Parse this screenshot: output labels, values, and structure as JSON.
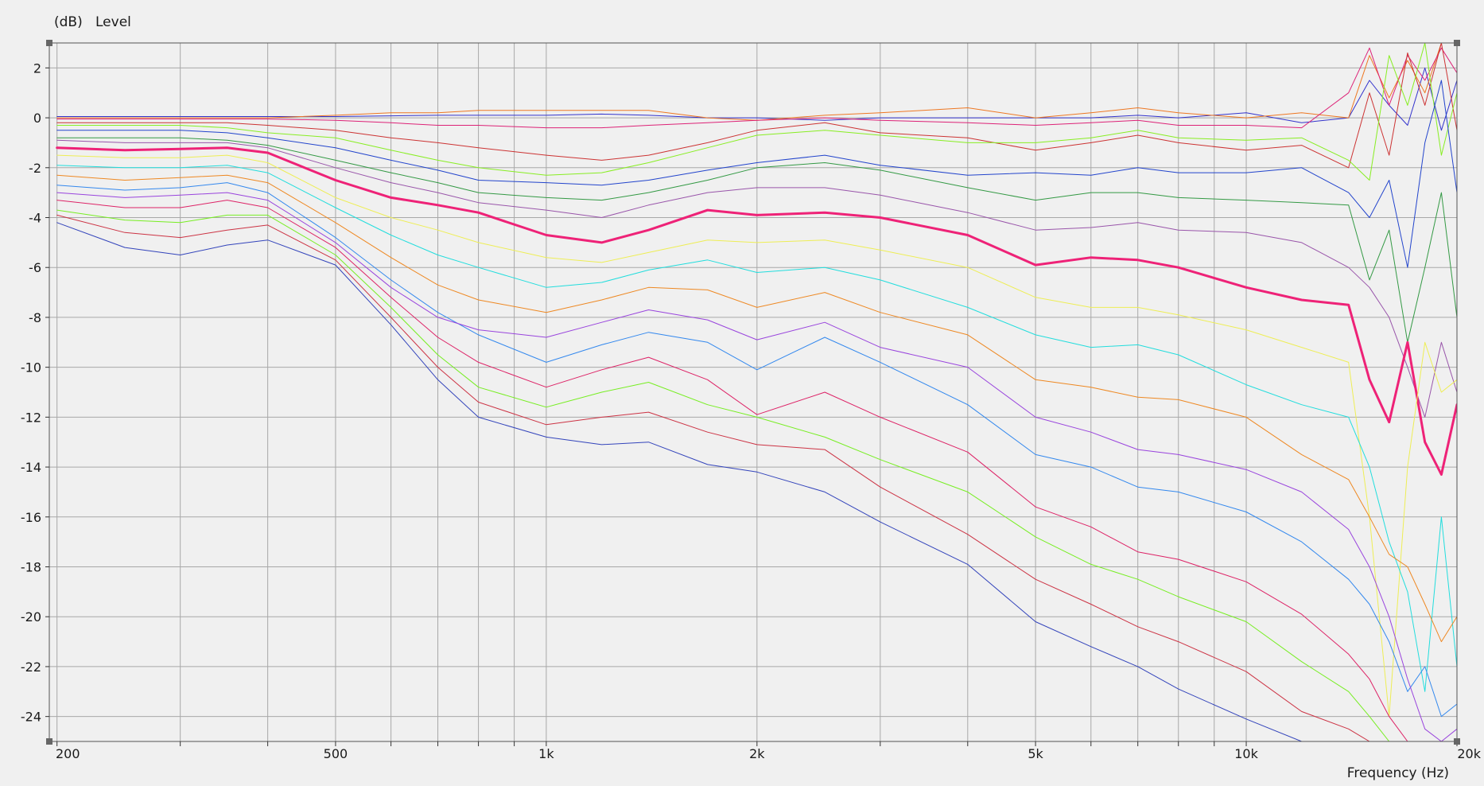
{
  "chart_data": {
    "type": "line",
    "ylabel_unit": "(dB)",
    "ylabel": "Level",
    "xlabel": "Frequency  (Hz)",
    "x_scale": "log",
    "xlim": [
      195,
      20000
    ],
    "ylim": [
      -25,
      3
    ],
    "grid": true,
    "x_ticks_labeled": [
      {
        "value": 200,
        "label": "200"
      },
      {
        "value": 500,
        "label": "500"
      },
      {
        "value": 1000,
        "label": "1k"
      },
      {
        "value": 2000,
        "label": "2k"
      },
      {
        "value": 5000,
        "label": "5k"
      },
      {
        "value": 10000,
        "label": "10k"
      },
      {
        "value": 20000,
        "label": "20k"
      }
    ],
    "x_gridlines": [
      200,
      300,
      400,
      500,
      600,
      700,
      800,
      900,
      1000,
      2000,
      3000,
      4000,
      5000,
      6000,
      7000,
      8000,
      9000,
      10000,
      20000
    ],
    "y_ticks": [
      2,
      0,
      -2,
      -4,
      -6,
      -8,
      -10,
      -12,
      -14,
      -16,
      -18,
      -20,
      -22,
      -24
    ],
    "x": [
      200,
      250,
      300,
      350,
      400,
      500,
      600,
      700,
      800,
      1000,
      1200,
      1400,
      1700,
      2000,
      2500,
      3000,
      4000,
      5000,
      6000,
      7000,
      8000,
      10000,
      12000,
      14000,
      15000,
      16000,
      17000,
      18000,
      19000,
      20000
    ],
    "series": [
      {
        "color": "#3333cc",
        "width": 1,
        "values": [
          0.05,
          0.05,
          0.05,
          0.05,
          0.05,
          0.05,
          0.08,
          0.1,
          0.1,
          0.1,
          0.15,
          0.1,
          0.0,
          0.0,
          -0.1,
          0.0,
          0.0,
          0.0,
          0.0,
          0.1,
          0.0,
          0.2,
          -0.2,
          0.0,
          1.5,
          0.5,
          -0.3,
          2.0,
          -0.5,
          1.5
        ]
      },
      {
        "color": "#ee7722",
        "width": 1,
        "values": [
          0.0,
          0.0,
          0.0,
          0.0,
          0.0,
          0.1,
          0.2,
          0.2,
          0.3,
          0.3,
          0.3,
          0.3,
          0.0,
          -0.1,
          0.1,
          0.2,
          0.4,
          0.0,
          0.2,
          0.4,
          0.2,
          0.0,
          0.2,
          0.0,
          2.5,
          0.8,
          2.3,
          1.0,
          3.0,
          3.0
        ]
      },
      {
        "color": "#dd2277",
        "width": 1,
        "values": [
          -0.05,
          -0.05,
          -0.05,
          -0.05,
          -0.05,
          -0.1,
          -0.2,
          -0.3,
          -0.3,
          -0.4,
          -0.4,
          -0.3,
          -0.2,
          -0.1,
          0.0,
          -0.1,
          -0.2,
          -0.3,
          -0.2,
          -0.1,
          -0.3,
          -0.3,
          -0.4,
          1.0,
          2.8,
          0.5,
          2.5,
          1.5,
          2.8,
          1.8
        ]
      },
      {
        "color": "#cc3333",
        "width": 1,
        "values": [
          -0.2,
          -0.2,
          -0.2,
          -0.2,
          -0.3,
          -0.5,
          -0.8,
          -1.0,
          -1.2,
          -1.5,
          -1.7,
          -1.5,
          -1.0,
          -0.5,
          -0.2,
          -0.6,
          -0.8,
          -1.3,
          -1.0,
          -0.7,
          -1.0,
          -1.3,
          -1.1,
          -2.0,
          1.0,
          -1.5,
          2.6,
          0.5,
          3.0,
          -0.5
        ]
      },
      {
        "color": "#88ee22",
        "width": 1,
        "values": [
          -0.3,
          -0.3,
          -0.3,
          -0.4,
          -0.6,
          -0.8,
          -1.3,
          -1.7,
          -2.0,
          -2.3,
          -2.2,
          -1.8,
          -1.2,
          -0.7,
          -0.5,
          -0.7,
          -1.0,
          -1.0,
          -0.8,
          -0.5,
          -0.8,
          -0.9,
          -0.8,
          -1.7,
          -2.5,
          2.5,
          0.5,
          3.0,
          -1.5,
          1.0
        ]
      },
      {
        "color": "#2244cc",
        "width": 1,
        "values": [
          -0.5,
          -0.5,
          -0.5,
          -0.6,
          -0.8,
          -1.2,
          -1.7,
          -2.1,
          -2.5,
          -2.6,
          -2.7,
          -2.5,
          -2.1,
          -1.8,
          -1.5,
          -1.9,
          -2.3,
          -2.2,
          -2.3,
          -2.0,
          -2.2,
          -2.2,
          -2.0,
          -3.0,
          -4.0,
          -2.5,
          -6.0,
          -1.0,
          1.5,
          -3.0
        ]
      },
      {
        "color": "#339944",
        "width": 1,
        "values": [
          -0.8,
          -0.8,
          -0.8,
          -0.9,
          -1.1,
          -1.7,
          -2.2,
          -2.6,
          -3.0,
          -3.2,
          -3.3,
          -3.0,
          -2.5,
          -2.0,
          -1.8,
          -2.1,
          -2.8,
          -3.3,
          -3.0,
          -3.0,
          -3.2,
          -3.3,
          -3.4,
          -3.5,
          -6.5,
          -4.5,
          -9.0,
          -6.0,
          -3.0,
          -8.0
        ]
      },
      {
        "color": "#9955aa",
        "width": 1,
        "values": [
          -0.9,
          -1.0,
          -1.0,
          -1.0,
          -1.2,
          -2.0,
          -2.6,
          -3.0,
          -3.4,
          -3.7,
          -4.0,
          -3.5,
          -3.0,
          -2.8,
          -2.8,
          -3.1,
          -3.8,
          -4.5,
          -4.4,
          -4.2,
          -4.5,
          -4.6,
          -5.0,
          -6.0,
          -6.8,
          -8.0,
          -10.0,
          -12.0,
          -9.0,
          -11.0
        ]
      },
      {
        "color": "#ee2277",
        "width": 3,
        "values": [
          -1.2,
          -1.3,
          -1.25,
          -1.2,
          -1.4,
          -2.5,
          -3.2,
          -3.5,
          -3.8,
          -4.7,
          -5.0,
          -4.5,
          -3.7,
          -3.9,
          -3.8,
          -4.0,
          -4.7,
          -5.9,
          -5.6,
          -5.7,
          -6.0,
          -6.8,
          -7.3,
          -7.5,
          -10.5,
          -12.2,
          -9.0,
          -13.0,
          -14.3,
          -11.5
        ]
      },
      {
        "color": "#eeee55",
        "width": 1,
        "values": [
          -1.5,
          -1.6,
          -1.6,
          -1.5,
          -1.8,
          -3.2,
          -4.0,
          -4.5,
          -5.0,
          -5.6,
          -5.8,
          -5.4,
          -4.9,
          -5.0,
          -4.9,
          -5.3,
          -6.0,
          -7.2,
          -7.6,
          -7.6,
          -7.9,
          -8.5,
          -9.2,
          -9.8,
          -16.0,
          -24.0,
          -14.0,
          -9.0,
          -11.0,
          -10.5
        ]
      },
      {
        "color": "#22dddd",
        "width": 1,
        "values": [
          -1.9,
          -2.0,
          -2.0,
          -1.9,
          -2.2,
          -3.6,
          -4.7,
          -5.5,
          -6.0,
          -6.8,
          -6.6,
          -6.1,
          -5.7,
          -6.2,
          -6.0,
          -6.5,
          -7.6,
          -8.7,
          -9.2,
          -9.1,
          -9.5,
          -10.7,
          -11.5,
          -12.0,
          -14.0,
          -17.0,
          -19.0,
          -23.0,
          -16.0,
          -22.0
        ]
      },
      {
        "color": "#ee8822",
        "width": 1,
        "values": [
          -2.3,
          -2.5,
          -2.4,
          -2.3,
          -2.6,
          -4.2,
          -5.6,
          -6.7,
          -7.3,
          -7.8,
          -7.3,
          -6.8,
          -6.9,
          -7.6,
          -7.0,
          -7.8,
          -8.7,
          -10.5,
          -10.8,
          -11.2,
          -11.3,
          -12.0,
          -13.5,
          -14.5,
          -16.0,
          -17.5,
          -18.0,
          -19.5,
          -21.0,
          -20.0
        ]
      },
      {
        "color": "#3388ee",
        "width": 1,
        "values": [
          -2.7,
          -2.9,
          -2.8,
          -2.6,
          -3.0,
          -4.8,
          -6.5,
          -7.8,
          -8.7,
          -9.8,
          -9.1,
          -8.6,
          -9.0,
          -10.1,
          -8.8,
          -9.8,
          -11.5,
          -13.5,
          -14.0,
          -14.8,
          -15.0,
          -15.8,
          -17.0,
          -18.5,
          -19.5,
          -21.0,
          -23.0,
          -22.0,
          -24.0,
          -23.5
        ]
      },
      {
        "color": "#9944dd",
        "width": 1,
        "values": [
          -3.0,
          -3.2,
          -3.1,
          -3.0,
          -3.3,
          -5.0,
          -6.8,
          -8.0,
          -8.5,
          -8.8,
          -8.2,
          -7.7,
          -8.1,
          -8.9,
          -8.2,
          -9.2,
          -10.0,
          -12.0,
          -12.6,
          -13.3,
          -13.5,
          -14.1,
          -15.0,
          -16.5,
          -18.0,
          -20.0,
          -22.5,
          -24.5,
          -25.0,
          -24.5
        ]
      },
      {
        "color": "#dd2266",
        "width": 1,
        "values": [
          -3.3,
          -3.6,
          -3.6,
          -3.3,
          -3.6,
          -5.2,
          -7.2,
          -8.8,
          -9.8,
          -10.8,
          -10.1,
          -9.6,
          -10.5,
          -11.9,
          -11.0,
          -12.0,
          -13.4,
          -15.6,
          -16.4,
          -17.4,
          -17.7,
          -18.6,
          -19.9,
          -21.5,
          -22.5,
          -24.0,
          -25.0,
          -25.0,
          -25.0,
          -25.0
        ]
      },
      {
        "color": "#77ee22",
        "width": 1,
        "values": [
          -3.7,
          -4.1,
          -4.2,
          -3.9,
          -3.9,
          -5.5,
          -7.6,
          -9.5,
          -10.8,
          -11.6,
          -11.0,
          -10.6,
          -11.5,
          -12.0,
          -12.8,
          -13.7,
          -15.0,
          -16.8,
          -17.9,
          -18.5,
          -19.2,
          -20.2,
          -21.8,
          -23.0,
          -24.0,
          -25.0,
          -25.0,
          -25.0,
          -25.0,
          -25.0
        ]
      },
      {
        "color": "#cc3344",
        "width": 1,
        "values": [
          -3.9,
          -4.6,
          -4.8,
          -4.5,
          -4.3,
          -5.7,
          -8.0,
          -10.0,
          -11.4,
          -12.3,
          -12.0,
          -11.8,
          -12.6,
          -13.1,
          -13.3,
          -14.8,
          -16.7,
          -18.5,
          -19.5,
          -20.4,
          -21.0,
          -22.2,
          -23.8,
          -24.5,
          -25.0,
          -25.0,
          -25.0,
          -25.0,
          -25.0,
          -25.0
        ]
      },
      {
        "color": "#3344bb",
        "width": 1,
        "values": [
          -4.2,
          -5.2,
          -5.5,
          -5.1,
          -4.9,
          -5.9,
          -8.3,
          -10.5,
          -12.0,
          -12.8,
          -13.1,
          -13.0,
          -13.9,
          -14.2,
          -15.0,
          -16.2,
          -17.9,
          -20.2,
          -21.2,
          -22.0,
          -22.9,
          -24.1,
          -25.0,
          -25.0,
          -25.0,
          -25.0,
          -25.0,
          -25.0,
          -25.0,
          -25.0
        ]
      }
    ]
  }
}
